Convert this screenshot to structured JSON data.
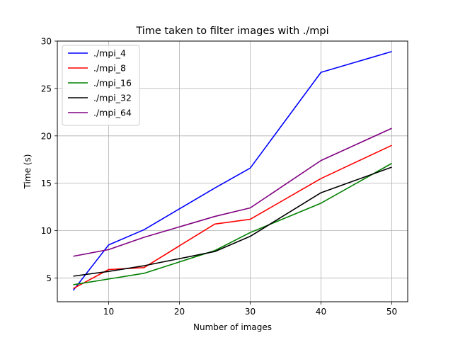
{
  "chart_data": {
    "type": "line",
    "title": "Time taken to filter images with ./mpi",
    "xlabel": "Number of images",
    "ylabel": "Time (s)",
    "x": [
      5,
      10,
      15,
      25,
      30,
      40,
      50
    ],
    "xlim": [
      2.75,
      52.25
    ],
    "ylim": [
      2.5,
      30
    ],
    "xticks": [
      10,
      20,
      30,
      40,
      50
    ],
    "yticks": [
      5,
      10,
      15,
      20,
      25,
      30
    ],
    "grid": true,
    "legend": "top-left",
    "series": [
      {
        "name": "./mpi_4",
        "color": "#0000ff",
        "values": [
          3.7,
          8.5,
          10.1,
          14.5,
          16.6,
          26.7,
          28.9
        ]
      },
      {
        "name": "./mpi_8",
        "color": "#ff0000",
        "values": [
          3.9,
          5.9,
          6.1,
          10.7,
          11.2,
          15.5,
          19.0
        ]
      },
      {
        "name": "./mpi_16",
        "color": "#008000",
        "values": [
          4.3,
          4.9,
          5.5,
          7.9,
          9.8,
          12.9,
          17.1
        ]
      },
      {
        "name": "./mpi_32",
        "color": "#000000",
        "values": [
          5.2,
          5.7,
          6.3,
          7.8,
          9.4,
          14.0,
          16.7
        ]
      },
      {
        "name": "./mpi_64",
        "color": "#800080",
        "values": [
          7.3,
          8.0,
          9.3,
          11.5,
          12.4,
          17.4,
          20.8
        ]
      }
    ]
  }
}
